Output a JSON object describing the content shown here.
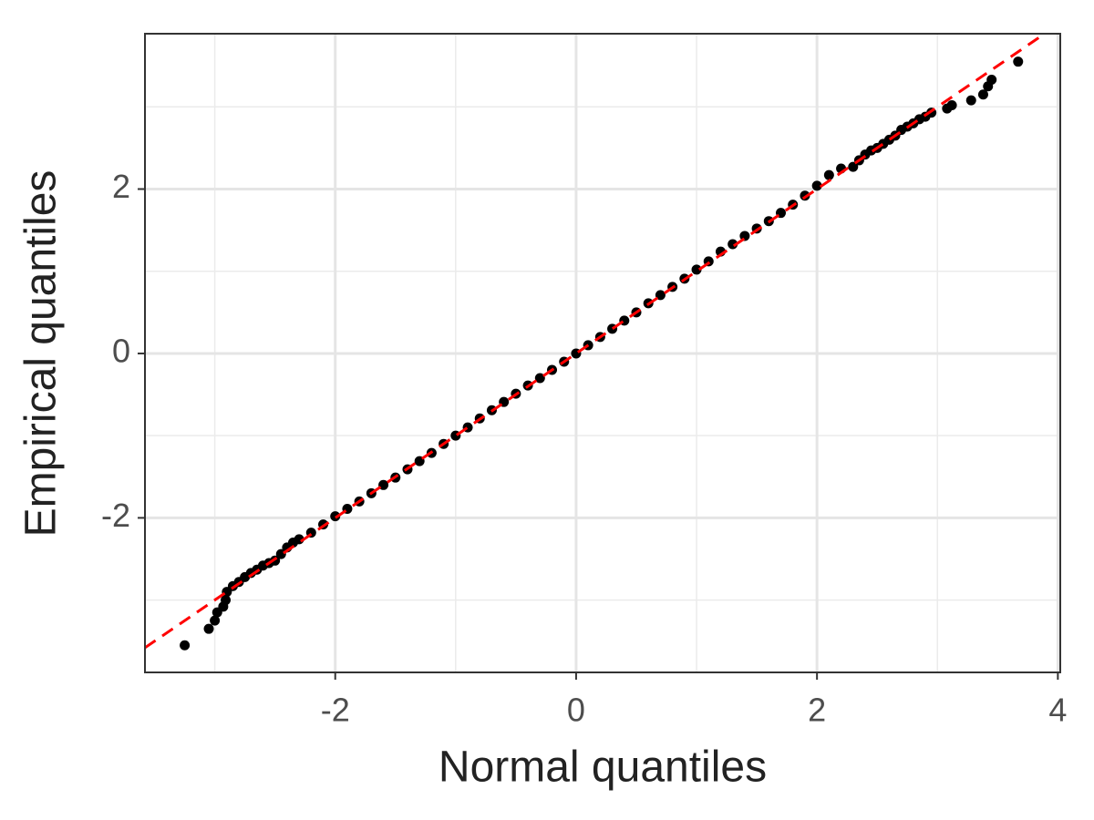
{
  "chart_data": {
    "type": "scatter",
    "x_label": "Normal quantiles",
    "y_label": "Empirical quantiles",
    "x": [
      -3.25,
      -3.05,
      -3.0,
      -2.98,
      -2.93,
      -2.91,
      -2.9,
      -2.85,
      -2.8,
      -2.75,
      -2.7,
      -2.65,
      -2.6,
      -2.55,
      -2.5,
      -2.45,
      -2.4,
      -2.35,
      -2.3,
      -2.2,
      -2.1,
      -2,
      -1.9,
      -1.8,
      -1.7,
      -1.6,
      -1.5,
      -1.4,
      -1.3,
      -1.2,
      -1.1,
      -1,
      -0.9,
      -0.8,
      -0.7,
      -0.6,
      -0.5,
      -0.4,
      -0.3,
      -0.2,
      -0.1,
      0,
      0.1,
      0.2,
      0.3,
      0.4,
      0.5,
      0.6,
      0.7,
      0.8,
      0.9,
      1,
      1.1,
      1.2,
      1.3,
      1.4,
      1.5,
      1.6,
      1.7,
      1.8,
      1.9,
      2,
      2.1,
      2.2,
      2.3,
      2.35,
      2.4,
      2.45,
      2.5,
      2.55,
      2.6,
      2.65,
      2.7,
      2.75,
      2.8,
      2.85,
      2.9,
      2.95,
      3.08,
      3.12,
      3.28,
      3.38,
      3.42,
      3.45,
      3.67
    ],
    "values": [
      -3.55,
      -3.35,
      -3.25,
      -3.15,
      -3.08,
      -3.0,
      -2.9,
      -2.83,
      -2.78,
      -2.72,
      -2.67,
      -2.63,
      -2.58,
      -2.55,
      -2.52,
      -2.44,
      -2.36,
      -2.3,
      -2.26,
      -2.18,
      -2.08,
      -1.98,
      -1.89,
      -1.8,
      -1.7,
      -1.6,
      -1.51,
      -1.41,
      -1.31,
      -1.21,
      -1.1,
      -1.0,
      -0.9,
      -0.79,
      -0.69,
      -0.59,
      -0.49,
      -0.39,
      -0.3,
      -0.2,
      -0.1,
      0.0,
      0.1,
      0.2,
      0.3,
      0.4,
      0.5,
      0.61,
      0.71,
      0.81,
      0.91,
      1.02,
      1.12,
      1.24,
      1.33,
      1.43,
      1.52,
      1.61,
      1.71,
      1.81,
      1.92,
      2.04,
      2.17,
      2.25,
      2.27,
      2.35,
      2.42,
      2.47,
      2.5,
      2.55,
      2.6,
      2.65,
      2.72,
      2.76,
      2.8,
      2.85,
      2.88,
      2.93,
      2.98,
      3.02,
      3.08,
      3.15,
      3.25,
      3.33,
      3.55
    ],
    "color": "black",
    "reference_line": {
      "slope": 1,
      "intercept": 0,
      "color": "red"
    },
    "xlim": [
      -3.58,
      4.02
    ],
    "ylim": [
      -3.88,
      3.89
    ],
    "xticks": [
      -2,
      0,
      2,
      4
    ],
    "yticks": [
      -2,
      0,
      2
    ],
    "x_minor_grid": [
      -3,
      -1,
      1,
      3
    ],
    "y_minor_grid": [
      -3,
      -1,
      1,
      3
    ],
    "grid": true
  }
}
